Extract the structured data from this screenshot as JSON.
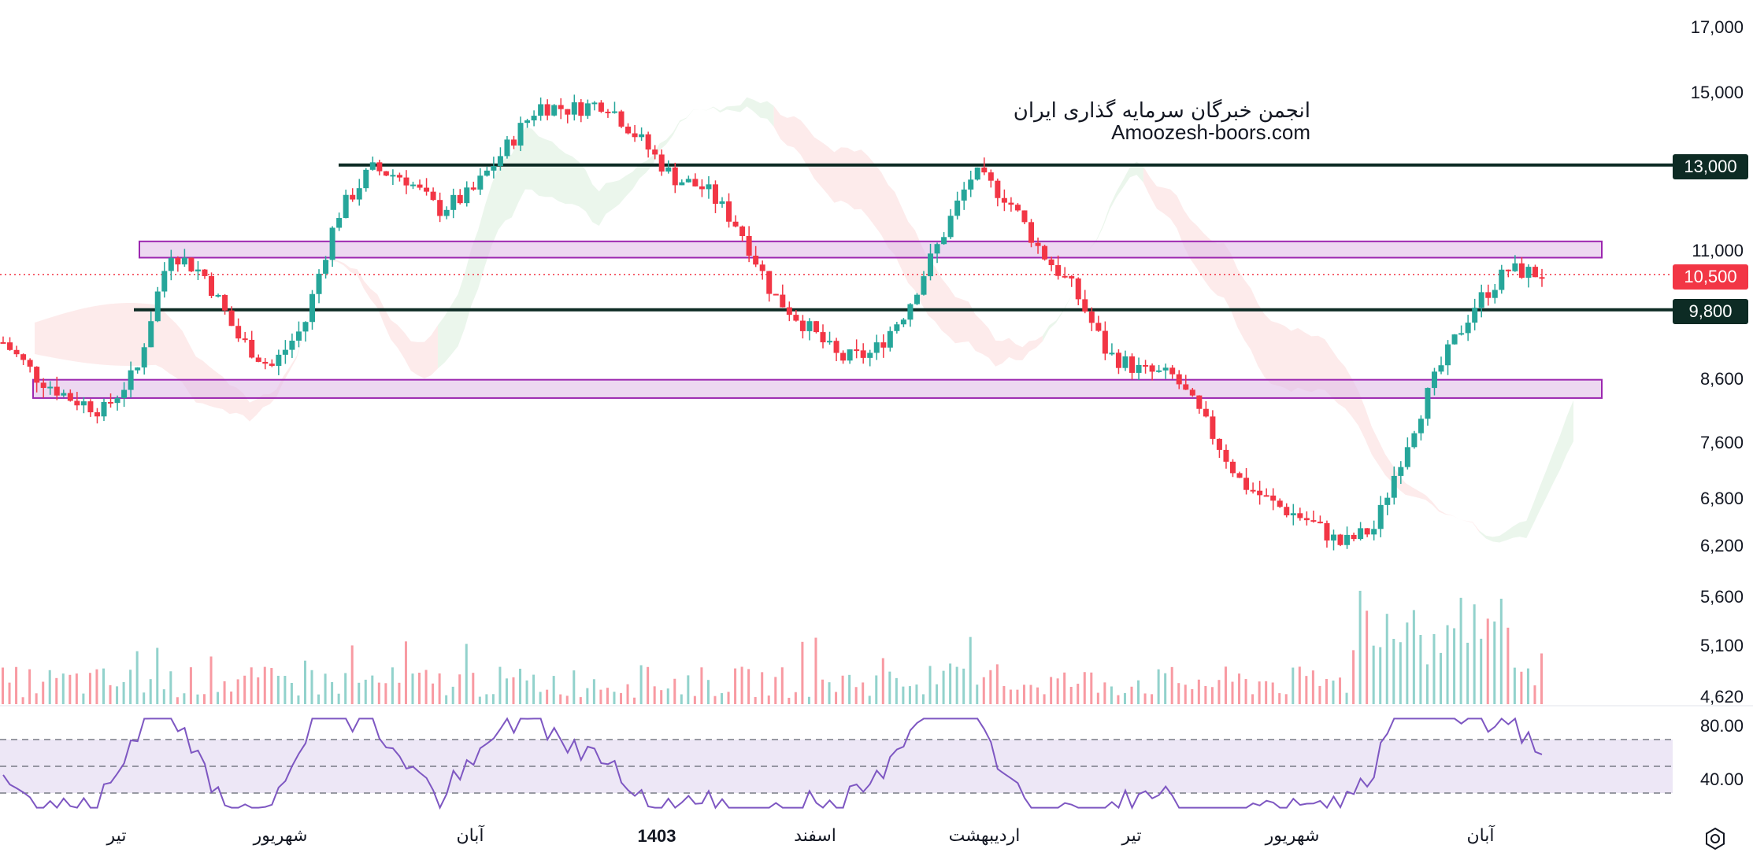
{
  "watermark": {
    "line1": "انجمن خبرگان سرمایه گذاری ایران",
    "line2": "Amoozesh-boors.com"
  },
  "price_axis": {
    "labels": [
      "17,000",
      "15,000",
      "13,000",
      "11,000",
      "10,500",
      "9,800",
      "8,600",
      "7,600",
      "6,800",
      "6,200",
      "5,600",
      "5,100",
      "4,620"
    ]
  },
  "rsi_axis": {
    "labels": [
      "80.00",
      "40.00"
    ]
  },
  "time_axis": {
    "labels": [
      "تیر",
      "شهریور",
      "آبان",
      "1403",
      "اسفند",
      "اردیبهشت",
      "تیر",
      "شهریور",
      "آبان"
    ]
  },
  "badges": {
    "level_13000": "13,000",
    "last_price": "10,500",
    "level_9800": "9,800"
  },
  "colors": {
    "up": "#26a69a",
    "down": "#f23645",
    "level_line": "#0d2b24",
    "zone_fill": "#e1bee7",
    "zone_stroke": "#9c27b0",
    "rsi_line": "#7e57c2",
    "rsi_band": "#ede7f6",
    "cloud_bull": "#e8f5e9",
    "cloud_bear": "#fde8e8",
    "last_price": "#f23645"
  },
  "icons": {
    "settings": "settings-gear-icon"
  },
  "chart_data": {
    "type": "candlestick",
    "x": [
      "تیر",
      "شهریور",
      "آبان",
      "1403",
      "اسفند",
      "اردیبهشت",
      "تیر",
      "شهریور",
      "آبان"
    ],
    "close_series": [
      {
        "name": "",
        "values": [
          9200,
          8600,
          8250,
          8050,
          8700,
          11000,
          10500,
          9300,
          8750,
          9500,
          11800,
          12900,
          12700,
          11900,
          12300,
          13400,
          14600,
          14500,
          14700,
          13700,
          12700,
          12400,
          11500,
          10100,
          9500,
          8900,
          9000,
          9800,
          11200,
          12800,
          12200,
          11000,
          10200,
          9000,
          8700,
          8600,
          7800,
          7000,
          6700,
          6500,
          6200,
          6400,
          7600,
          8800,
          9900,
          10600,
          10500
        ]
      }
    ],
    "horizontal_levels": [
      13000,
      9800
    ],
    "zones": [
      {
        "from": 10850,
        "to": 11200
      },
      {
        "from": 8250,
        "to": 8550
      }
    ],
    "last_price": 10500,
    "price_axis_ticks": [
      17000,
      15000,
      13000,
      11000,
      8600,
      7600,
      6800,
      6200,
      5600,
      5100,
      4620
    ],
    "price_scale": "log",
    "rsi_axis_ticks": [
      80,
      40
    ],
    "indicators": [
      "ichimoku cloud",
      "volume",
      "RSI"
    ]
  }
}
